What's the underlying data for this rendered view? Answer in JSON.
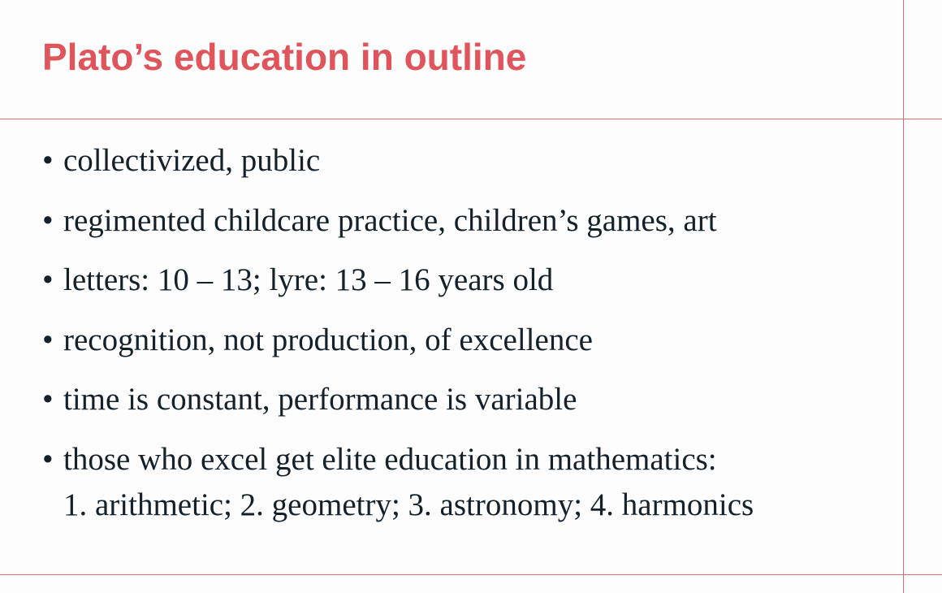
{
  "slide": {
    "title": "Plato’s education in outline",
    "bullet_marker": "•",
    "bullets": [
      {
        "text": "collectivized, public"
      },
      {
        "text": "regimented childcare practice, children’s games, art"
      },
      {
        "text": "letters: 10 – 13; lyre: 13 – 16 years old"
      },
      {
        "text": "recognition, not production, of excellence"
      },
      {
        "text": "time is constant, performance is variable"
      },
      {
        "text": "those who excel get elite education in mathematics:",
        "continuation": "1. arithmetic; 2. geometry; 3. astronomy; 4. harmonics"
      }
    ]
  },
  "colors": {
    "title": "#e0555c",
    "rules": "#dc6b6f",
    "body_text": "#14212a",
    "background": "#fefdfd"
  }
}
